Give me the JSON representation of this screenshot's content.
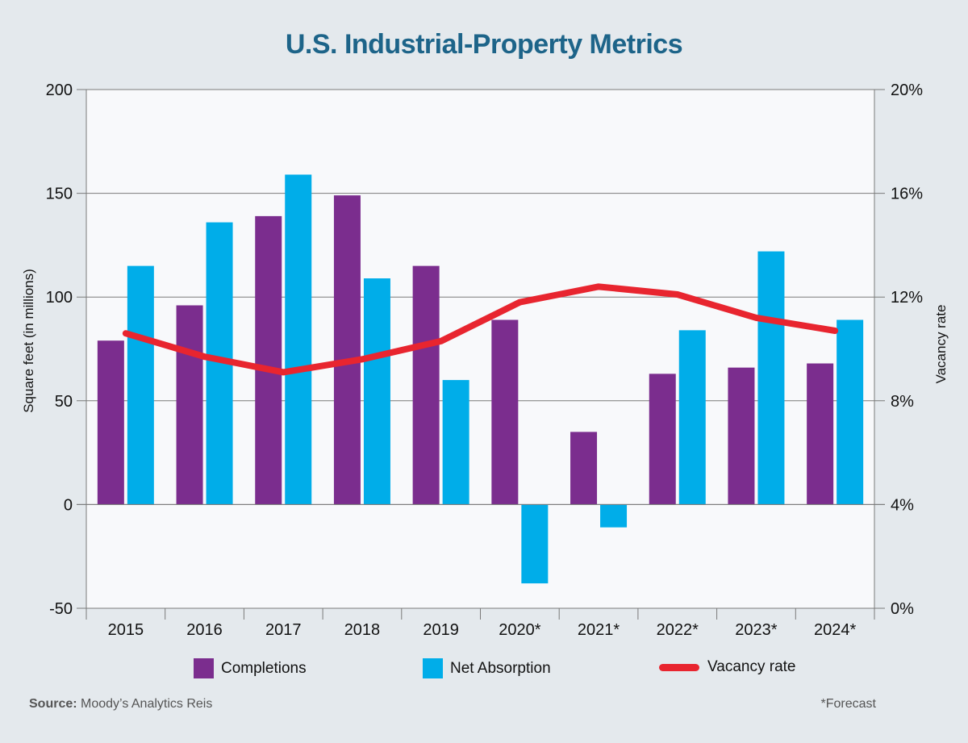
{
  "chart_data": {
    "type": "bar",
    "title": "U.S. Industrial-Property Metrics",
    "categories": [
      "2015",
      "2016",
      "2017",
      "2018",
      "2019",
      "2020*",
      "2021*",
      "2022*",
      "2023*",
      "2024*"
    ],
    "series": [
      {
        "name": "Completions",
        "type": "bar",
        "axis": "left",
        "color": "#7b2d8e",
        "values": [
          79,
          96,
          139,
          149,
          115,
          89,
          35,
          63,
          66,
          68
        ]
      },
      {
        "name": "Net Absorption",
        "type": "bar",
        "axis": "left",
        "color": "#00ade9",
        "values": [
          115,
          136,
          159,
          109,
          60,
          -38,
          -11,
          84,
          122,
          89
        ]
      },
      {
        "name": "Vacancy rate",
        "type": "line",
        "axis": "right",
        "color": "#e8252f",
        "values": [
          10.6,
          9.7,
          9.1,
          9.6,
          10.3,
          11.8,
          12.4,
          12.1,
          11.2,
          10.7
        ]
      }
    ],
    "ylabel": "Square feet (in millions)",
    "ylim": [
      -50,
      200
    ],
    "yticks": [
      "-50",
      "0",
      "50",
      "100",
      "150",
      "200"
    ],
    "y2label": "Vacancy rate",
    "y2lim": [
      0,
      20
    ],
    "y2ticks": [
      "0%",
      "4%",
      "8%",
      "12%",
      "16%",
      "20%"
    ],
    "grid": true,
    "legend_position": "bottom"
  },
  "legend": {
    "completions": "Completions",
    "net_absorption": "Net Absorption",
    "vacancy": "Vacancy rate"
  },
  "colors": {
    "title": "#1d6489",
    "completions": "#7b2d8e",
    "net_absorption": "#00ade9",
    "vacancy": "#e8252f",
    "plot_background": "#f8f9fb"
  },
  "source": {
    "label": "Source:",
    "text": "Moody’s Analytics Reis"
  },
  "footnote": "*Forecast"
}
